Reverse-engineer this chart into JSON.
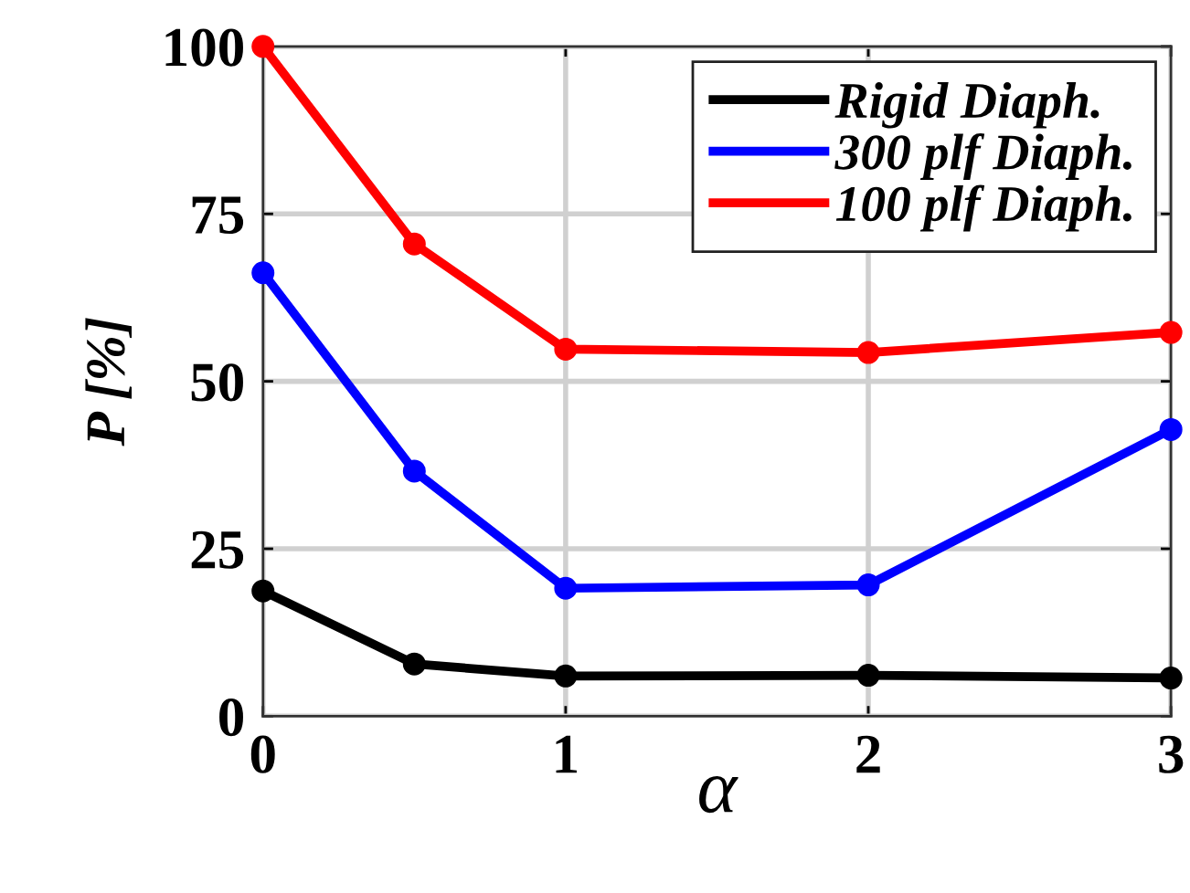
{
  "chart_data": {
    "type": "line",
    "xlabel": "α",
    "ylabel": "P [%]",
    "x": [
      0,
      0.5,
      1,
      2,
      3
    ],
    "series": [
      {
        "name": "Rigid Diaph.",
        "color": "#000000",
        "values": [
          18.7,
          7.8,
          6.0,
          6.1,
          5.7
        ]
      },
      {
        "name": "300 plf Diaph.",
        "color": "#0000ff",
        "values": [
          66.2,
          36.6,
          19.1,
          19.6,
          42.8
        ]
      },
      {
        "name": "100 plf Diaph.",
        "color": "#ff0000",
        "values": [
          100,
          70.5,
          54.8,
          54.3,
          57.3
        ]
      }
    ],
    "xlim": [
      0,
      3
    ],
    "xticks": [
      0,
      1,
      2,
      3
    ],
    "ylim": [
      0,
      100
    ],
    "yticks": [
      0,
      25,
      50,
      75,
      100
    ],
    "grid": true,
    "legend": "top right",
    "marker": "circle",
    "line_style": "solid"
  }
}
